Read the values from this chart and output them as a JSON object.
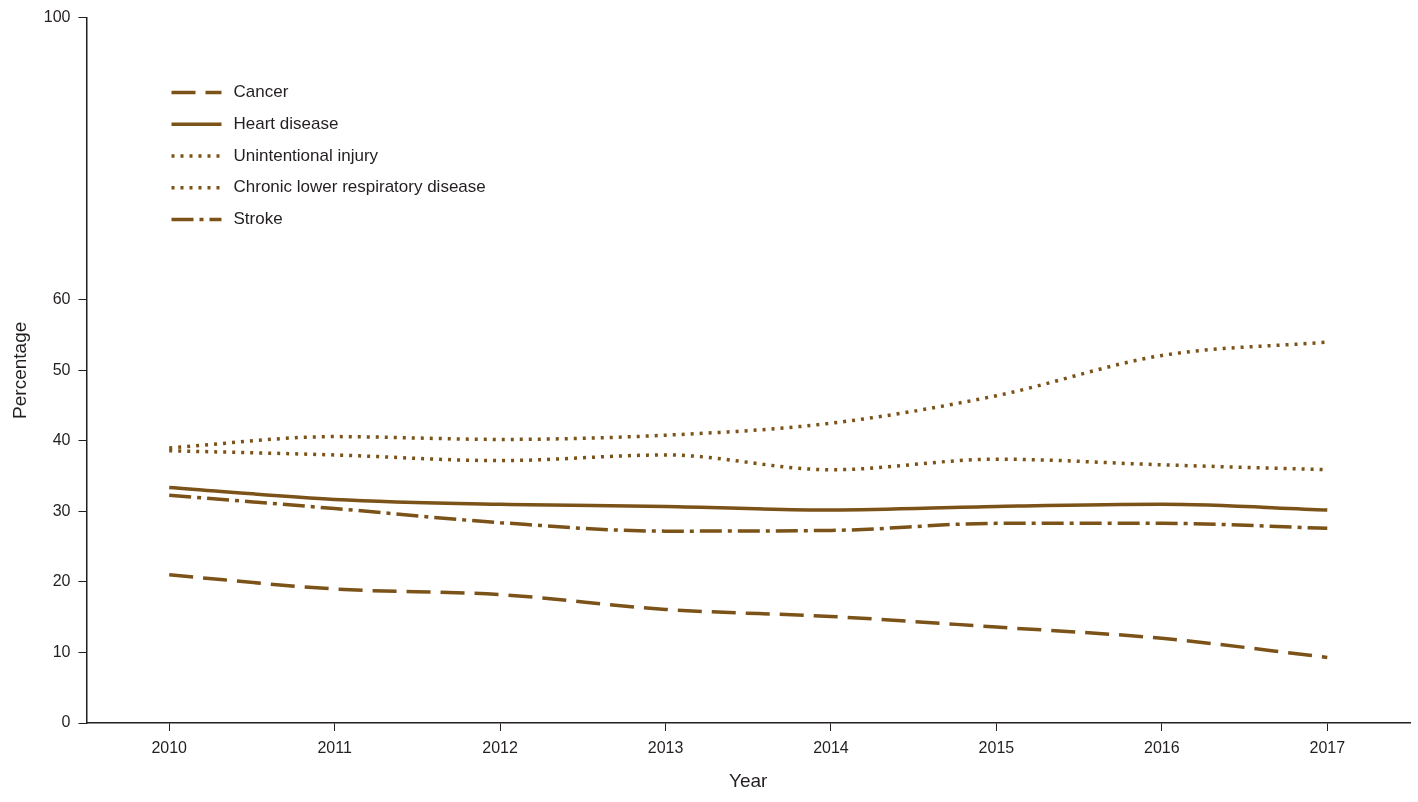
{
  "chart_data": {
    "type": "line",
    "xlabel": "Year",
    "ylabel": "Percentage",
    "categories": [
      "2010",
      "2011",
      "2012",
      "2013",
      "2014",
      "2015",
      "2016",
      "2017"
    ],
    "series": [
      {
        "name": "Cancer",
        "color": "#7b5218",
        "line_style": "dashed",
        "values": [
          21.0,
          19.0,
          18.2,
          16.1,
          15.1,
          13.6,
          12.0,
          9.3
        ]
      },
      {
        "name": "Heart disease",
        "color": "#7b5218",
        "line_style": "solid",
        "values": [
          33.4,
          31.7,
          31.0,
          30.7,
          30.2,
          30.7,
          31.0,
          30.2
        ]
      },
      {
        "name": "Unintentional injury",
        "color": "#7b5218",
        "line_style": "dotted",
        "values": [
          39.0,
          40.6,
          40.2,
          40.8,
          42.5,
          46.4,
          52.1,
          54.0
        ]
      },
      {
        "name": "Chronic lower respiratory disease",
        "color": "#7b5218",
        "line_style": "dotted",
        "values": [
          38.6,
          38.0,
          37.2,
          38.0,
          35.9,
          37.4,
          36.6,
          35.9
        ]
      },
      {
        "name": "Stroke",
        "color": "#7b5218",
        "line_style": "dashdot",
        "values": [
          32.3,
          30.4,
          28.4,
          27.2,
          27.3,
          28.3,
          28.3,
          27.6
        ]
      }
    ],
    "ylim": [
      0,
      100
    ],
    "yticks": [
      0,
      10,
      20,
      30,
      40,
      50,
      60,
      100
    ],
    "grid": false,
    "legend": "top left",
    "marker": "none"
  }
}
